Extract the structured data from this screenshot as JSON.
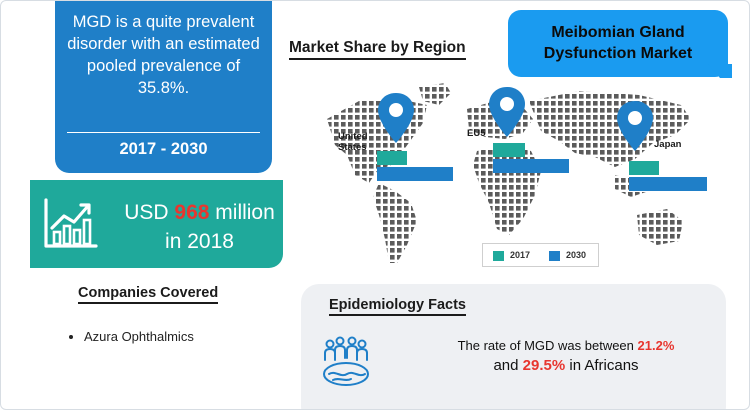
{
  "prevalence_box": {
    "description": "MGD is a quite prevalent disorder with an estimated pooled prevalence of 35.8%.",
    "period": "2017 - 2030"
  },
  "market_size": {
    "prefix": "USD",
    "value": "968",
    "suffix": "million",
    "year_text": "in 2018",
    "icon": "growth-chart-icon"
  },
  "companies": {
    "title": "Companies Covered",
    "items": [
      "Azura Ophthalmics"
    ]
  },
  "market_share": {
    "title": "Market Share by Region",
    "regions": [
      {
        "label_line1": "United",
        "label_line2": "States"
      },
      {
        "label_line1": "EU5",
        "label_line2": ""
      },
      {
        "label_line1": "Japan",
        "label_line2": ""
      }
    ],
    "legend": [
      {
        "label": "2017",
        "color": "#1fa99b"
      },
      {
        "label": "2030",
        "color": "#1f7fc8"
      }
    ],
    "icon": "location-pin-icon"
  },
  "bubble": {
    "line1": "Meibomian Gland",
    "line2": "Dysfunction Market"
  },
  "epidemiology": {
    "title": "Epidemiology Facts",
    "line1_prefix": "The rate of MGD was between",
    "value1": "21.2%",
    "line2_prefix": "and",
    "value2": "29.5%",
    "line2_suffix": "in Africans",
    "icon": "population-globe-icon"
  },
  "colors": {
    "blue": "#1f7fc8",
    "teal": "#1fa99b",
    "bubble": "#1a9bf0",
    "highlight": "#e8362f"
  }
}
